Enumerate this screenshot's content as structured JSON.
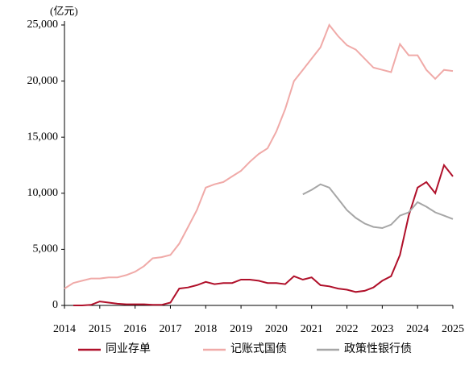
{
  "chart_data": {
    "type": "line",
    "unit_label": "(亿元)",
    "x": [
      2014,
      2014.25,
      2014.5,
      2014.75,
      2015,
      2015.25,
      2015.5,
      2015.75,
      2016,
      2016.25,
      2016.5,
      2016.75,
      2017,
      2017.25,
      2017.5,
      2017.75,
      2018,
      2018.25,
      2018.5,
      2018.75,
      2019,
      2019.25,
      2019.5,
      2019.75,
      2020,
      2020.25,
      2020.5,
      2020.75,
      2021,
      2021.25,
      2021.5,
      2021.75,
      2022,
      2022.25,
      2022.5,
      2022.75,
      2023,
      2023.25,
      2023.5,
      2023.75,
      2024,
      2024.25,
      2024.5,
      2024.75,
      2025
    ],
    "series": [
      {
        "name": "同业存单",
        "color": "#b0102a",
        "values": [
          null,
          0,
          0,
          50,
          350,
          250,
          150,
          100,
          100,
          100,
          50,
          50,
          250,
          1500,
          1600,
          1800,
          2100,
          1900,
          2000,
          2000,
          2300,
          2300,
          2200,
          2000,
          2000,
          1900,
          2600,
          2300,
          2500,
          1800,
          1700,
          1500,
          1400,
          1200,
          1300,
          1600,
          2200,
          2600,
          4500,
          8000,
          10500,
          11000,
          10000,
          12500,
          11500
        ]
      },
      {
        "name": "记账式国债",
        "color": "#f0aaa8",
        "values": [
          1500,
          2000,
          2200,
          2400,
          2400,
          2500,
          2500,
          2700,
          3000,
          3500,
          4200,
          4300,
          4500,
          5500,
          7000,
          8500,
          10500,
          10800,
          11000,
          11500,
          12000,
          12800,
          13500,
          14000,
          15500,
          17500,
          20000,
          21000,
          22000,
          23000,
          25000,
          24000,
          23200,
          22800,
          22000,
          21200,
          21000,
          20800,
          23300,
          22300,
          22300,
          21000,
          20200,
          21000,
          20900
        ]
      },
      {
        "name": "政策性银行债",
        "color": "#a6a6a6",
        "values": [
          null,
          null,
          null,
          null,
          null,
          null,
          null,
          null,
          null,
          null,
          null,
          null,
          null,
          null,
          null,
          null,
          null,
          null,
          null,
          null,
          null,
          null,
          null,
          null,
          null,
          null,
          null,
          9900,
          10300,
          10800,
          10500,
          9500,
          8500,
          7800,
          7300,
          7000,
          6900,
          7200,
          8000,
          8300,
          9200,
          8800,
          8300,
          8000,
          7700
        ]
      }
    ],
    "xlim": [
      2014,
      2025
    ],
    "xticks": [
      2014,
      2015,
      2016,
      2017,
      2018,
      2019,
      2020,
      2021,
      2022,
      2023,
      2024,
      2025
    ],
    "ylim": [
      0,
      25000
    ],
    "yticks": [
      0,
      {
        "value": 5000,
        "label": "5,000"
      },
      {
        "value": 10000,
        "label": "10,000"
      },
      {
        "value": 15000,
        "label": "15,000"
      },
      {
        "value": 20000,
        "label": "20,000"
      },
      {
        "value": 25000,
        "label": "25,000"
      }
    ],
    "legend": "bottom"
  }
}
